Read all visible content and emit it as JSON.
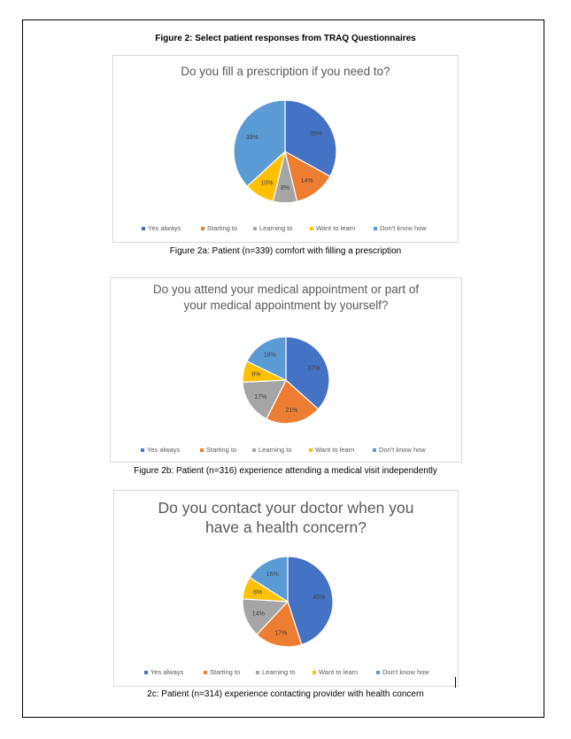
{
  "figure_title": "Figure 2: Select patient responses from TRAQ Questionnaires",
  "chart_data": [
    {
      "type": "pie",
      "title": [
        "Do you fill a prescription if you need to?"
      ],
      "categories": [
        "Yes always",
        "Starting to",
        "Learning to",
        "Want to learn",
        "Don't know how"
      ],
      "values": [
        35,
        14,
        8,
        10,
        39
      ],
      "labels": [
        "35%",
        "14%",
        "8%",
        "10%",
        "39%"
      ],
      "colors": [
        "#4472c4",
        "#ed7d31",
        "#a5a5a5",
        "#ffc000",
        "#5b9bd5"
      ],
      "legend": "bottom"
    },
    {
      "type": "pie",
      "title": [
        "Do you attend your medical appointment or part of",
        "your medical appointment by yourself?"
      ],
      "categories": [
        "Yes always",
        "Starting to",
        "Learning to",
        "Want to learn",
        "Don't know how"
      ],
      "values": [
        37,
        21,
        17,
        8,
        18
      ],
      "labels": [
        "37%",
        "21%",
        "17%",
        "8%",
        "18%"
      ],
      "colors": [
        "#4472c4",
        "#ed7d31",
        "#a5a5a5",
        "#ffc000",
        "#5b9bd5"
      ],
      "legend": "bottom"
    },
    {
      "type": "pie",
      "title": [
        "Do you contact your doctor when you",
        "have a health concern?"
      ],
      "categories": [
        "Yes always",
        "Starting to",
        "Learning to",
        "Want to learn",
        "Don't know how"
      ],
      "values": [
        45,
        17,
        14,
        8,
        16
      ],
      "labels": [
        "45%",
        "17%",
        "14%",
        "8%",
        "16%"
      ],
      "colors": [
        "#4472c4",
        "#ed7d31",
        "#a5a5a5",
        "#ffc000",
        "#5b9bd5"
      ],
      "legend": "bottom"
    }
  ],
  "captions": [
    "Figure 2a: Patient (n=339) comfort with filling a prescription",
    "Figure 2b: Patient (n=316) experience attending a medical visit independently",
    "2c: Patient (n=314) experience contacting provider with health concern"
  ]
}
